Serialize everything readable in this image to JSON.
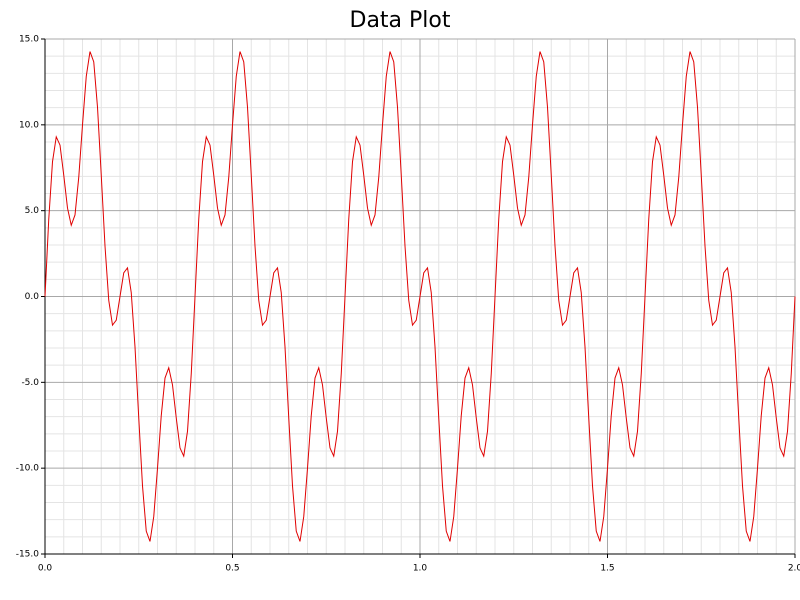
{
  "chart_data": {
    "type": "line",
    "title": "Data Plot",
    "color": "#e00000",
    "grid": true,
    "minor_grid": true,
    "x": [
      0,
      0.01,
      0.02,
      0.03,
      0.04,
      0.05,
      0.06,
      0.07,
      0.08,
      0.09,
      0.1,
      0.11,
      0.12,
      0.13,
      0.14,
      0.15,
      0.16,
      0.17,
      0.18,
      0.19,
      0.2,
      0.21,
      0.22,
      0.23,
      0.24,
      0.25,
      0.26,
      0.27,
      0.28,
      0.29,
      0.3,
      0.31,
      0.32,
      0.33,
      0.34,
      0.35,
      0.36,
      0.37,
      0.38,
      0.39,
      0.4,
      0.41,
      0.42,
      0.43,
      0.44,
      0.45,
      0.46,
      0.47,
      0.48,
      0.49,
      0.5,
      0.51,
      0.52,
      0.53,
      0.54,
      0.55,
      0.56,
      0.57,
      0.58,
      0.59,
      0.6,
      0.61,
      0.62,
      0.63,
      0.64,
      0.65,
      0.66,
      0.67,
      0.68,
      0.69,
      0.7,
      0.71,
      0.72,
      0.73,
      0.74,
      0.75,
      0.76,
      0.77,
      0.78,
      0.79,
      0.8,
      0.81,
      0.82,
      0.83,
      0.84,
      0.85,
      0.86,
      0.87,
      0.88,
      0.89,
      0.9,
      0.91,
      0.92,
      0.93,
      0.94,
      0.95,
      0.96,
      0.97,
      0.98,
      0.99,
      1,
      1.01,
      1.02,
      1.03,
      1.04,
      1.05,
      1.06,
      1.07,
      1.08,
      1.09,
      1.1,
      1.11,
      1.12,
      1.13,
      1.14,
      1.15,
      1.16,
      1.17,
      1.18,
      1.19,
      1.2,
      1.21,
      1.22,
      1.23,
      1.24,
      1.25,
      1.26,
      1.27,
      1.28,
      1.29,
      1.3,
      1.31,
      1.32,
      1.33,
      1.34,
      1.35,
      1.36,
      1.37,
      1.38,
      1.39,
      1.4,
      1.41,
      1.42,
      1.43,
      1.44,
      1.45,
      1.46,
      1.47,
      1.48,
      1.49,
      1.5,
      1.51,
      1.52,
      1.53,
      1.54,
      1.55,
      1.56,
      1.57,
      1.58,
      1.59,
      1.6,
      1.61,
      1.62,
      1.63,
      1.64,
      1.65,
      1.66,
      1.67,
      1.68,
      1.69,
      1.7,
      1.71,
      1.72,
      1.73,
      1.74,
      1.75,
      1.76,
      1.77,
      1.78,
      1.79,
      1.8,
      1.81,
      1.82,
      1.83,
      1.84,
      1.85,
      1.86,
      1.87,
      1.88,
      1.89,
      1.9,
      1.91,
      1.92,
      1.93,
      1.94,
      1.95,
      1.96,
      1.97,
      1.98,
      1.99,
      2
    ],
    "values": [
      0,
      4.5,
      7.85,
      9.3,
      8.82,
      7.07,
      5.15,
      4.15,
      4.75,
      6.94,
      10,
      12.82,
      14.27,
      13.67,
      11.03,
      7.07,
      2.94,
      -0.22,
      -1.67,
      -1.38,
      0,
      1.38,
      1.67,
      0.22,
      -2.94,
      -7.07,
      -11.03,
      -13.67,
      -14.27,
      -12.82,
      -10,
      -6.94,
      -4.75,
      -4.15,
      -5.15,
      -7.07,
      -8.82,
      -9.3,
      -7.85,
      -4.5,
      0,
      4.5,
      7.85,
      9.3,
      8.82,
      7.07,
      5.15,
      4.15,
      4.75,
      6.94,
      10,
      12.82,
      14.27,
      13.67,
      11.03,
      7.07,
      2.94,
      -0.22,
      -1.67,
      -1.38,
      0,
      1.38,
      1.67,
      0.22,
      -2.94,
      -7.07,
      -11.03,
      -13.67,
      -14.27,
      -12.82,
      -10,
      -6.94,
      -4.75,
      -4.15,
      -5.15,
      -7.07,
      -8.82,
      -9.3,
      -7.85,
      -4.5,
      0,
      4.5,
      7.85,
      9.3,
      8.82,
      7.07,
      5.15,
      4.15,
      4.75,
      6.94,
      10,
      12.82,
      14.27,
      13.67,
      11.03,
      7.07,
      2.94,
      -0.22,
      -1.67,
      -1.38,
      0,
      1.38,
      1.67,
      0.22,
      -2.94,
      -7.07,
      -11.03,
      -13.67,
      -14.27,
      -12.82,
      -10,
      -6.94,
      -4.75,
      -4.15,
      -5.15,
      -7.07,
      -8.82,
      -9.3,
      -7.85,
      -4.5,
      0,
      4.5,
      7.85,
      9.3,
      8.82,
      7.07,
      5.15,
      4.15,
      4.75,
      6.94,
      10,
      12.82,
      14.27,
      13.67,
      11.03,
      7.07,
      2.94,
      -0.22,
      -1.67,
      -1.38,
      0,
      1.38,
      1.67,
      0.22,
      -2.94,
      -7.07,
      -11.03,
      -13.67,
      -14.27,
      -12.82,
      -10,
      -6.94,
      -4.75,
      -4.15,
      -5.15,
      -7.07,
      -8.82,
      -9.3,
      -7.85,
      -4.5,
      0,
      4.5,
      7.85,
      9.3,
      8.82,
      7.07,
      5.15,
      4.15,
      4.75,
      6.94,
      10,
      12.82,
      14.27,
      13.67,
      11.03,
      7.07,
      2.94,
      -0.22,
      -1.67,
      -1.38,
      0,
      1.38,
      1.67,
      0.22,
      -2.94,
      -7.07,
      -11.03,
      -13.67,
      -14.27,
      -12.82,
      -10,
      -6.94,
      -4.75,
      -4.15,
      -5.15,
      -7.07,
      -8.82,
      -9.3,
      -7.85,
      -4.5,
      0
    ],
    "xlim": [
      0,
      2
    ],
    "xticks": [
      {
        "value": 0,
        "label": "0.0"
      },
      0.5,
      {
        "value": 1,
        "label": "1.0"
      },
      1.5,
      {
        "value": 2,
        "label": "2.0"
      }
    ],
    "ylim": [
      -15,
      15
    ],
    "yticks": [
      {
        "value": -15,
        "label": "-15.0"
      },
      {
        "value": -10,
        "label": "-10.0"
      },
      {
        "value": -5,
        "label": "-5.0"
      },
      {
        "value": 0,
        "label": "0.0"
      },
      {
        "value": 5,
        "label": "5.0"
      },
      {
        "value": 10,
        "label": "10.0"
      },
      {
        "value": 15,
        "label": "15.0"
      }
    ]
  }
}
